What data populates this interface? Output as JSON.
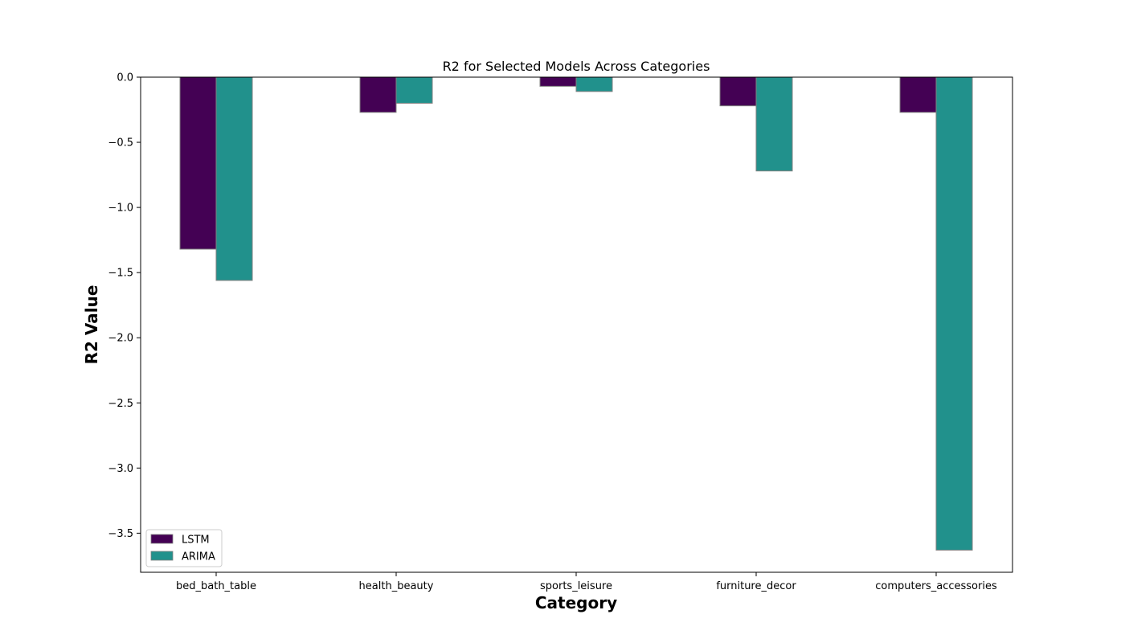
{
  "chart_data": {
    "type": "bar",
    "title": "R2 for Selected Models Across Categories",
    "xlabel": "Category",
    "ylabel": "R2 Value",
    "categories": [
      "bed_bath_table",
      "health_beauty",
      "sports_leisure",
      "furniture_decor",
      "computers_accessories"
    ],
    "series": [
      {
        "name": "LSTM",
        "values": [
          -1.32,
          -0.27,
          -0.07,
          -0.22,
          -0.27
        ],
        "color": "#440154"
      },
      {
        "name": "ARIMA",
        "values": [
          -1.56,
          -0.2,
          -0.11,
          -0.72,
          -3.63
        ],
        "color": "#21918c"
      }
    ],
    "ylim": [
      -3.8,
      0.0
    ],
    "yticks": [
      0.0,
      -0.5,
      -1.0,
      -1.5,
      -2.0,
      -2.5,
      -3.0,
      -3.5
    ],
    "ytick_labels": [
      "0.0",
      "−0.5",
      "−1.0",
      "−1.5",
      "−2.0",
      "−2.5",
      "−3.0",
      "−3.5"
    ],
    "grid": false,
    "legend": {
      "placement": "lower-left"
    }
  }
}
